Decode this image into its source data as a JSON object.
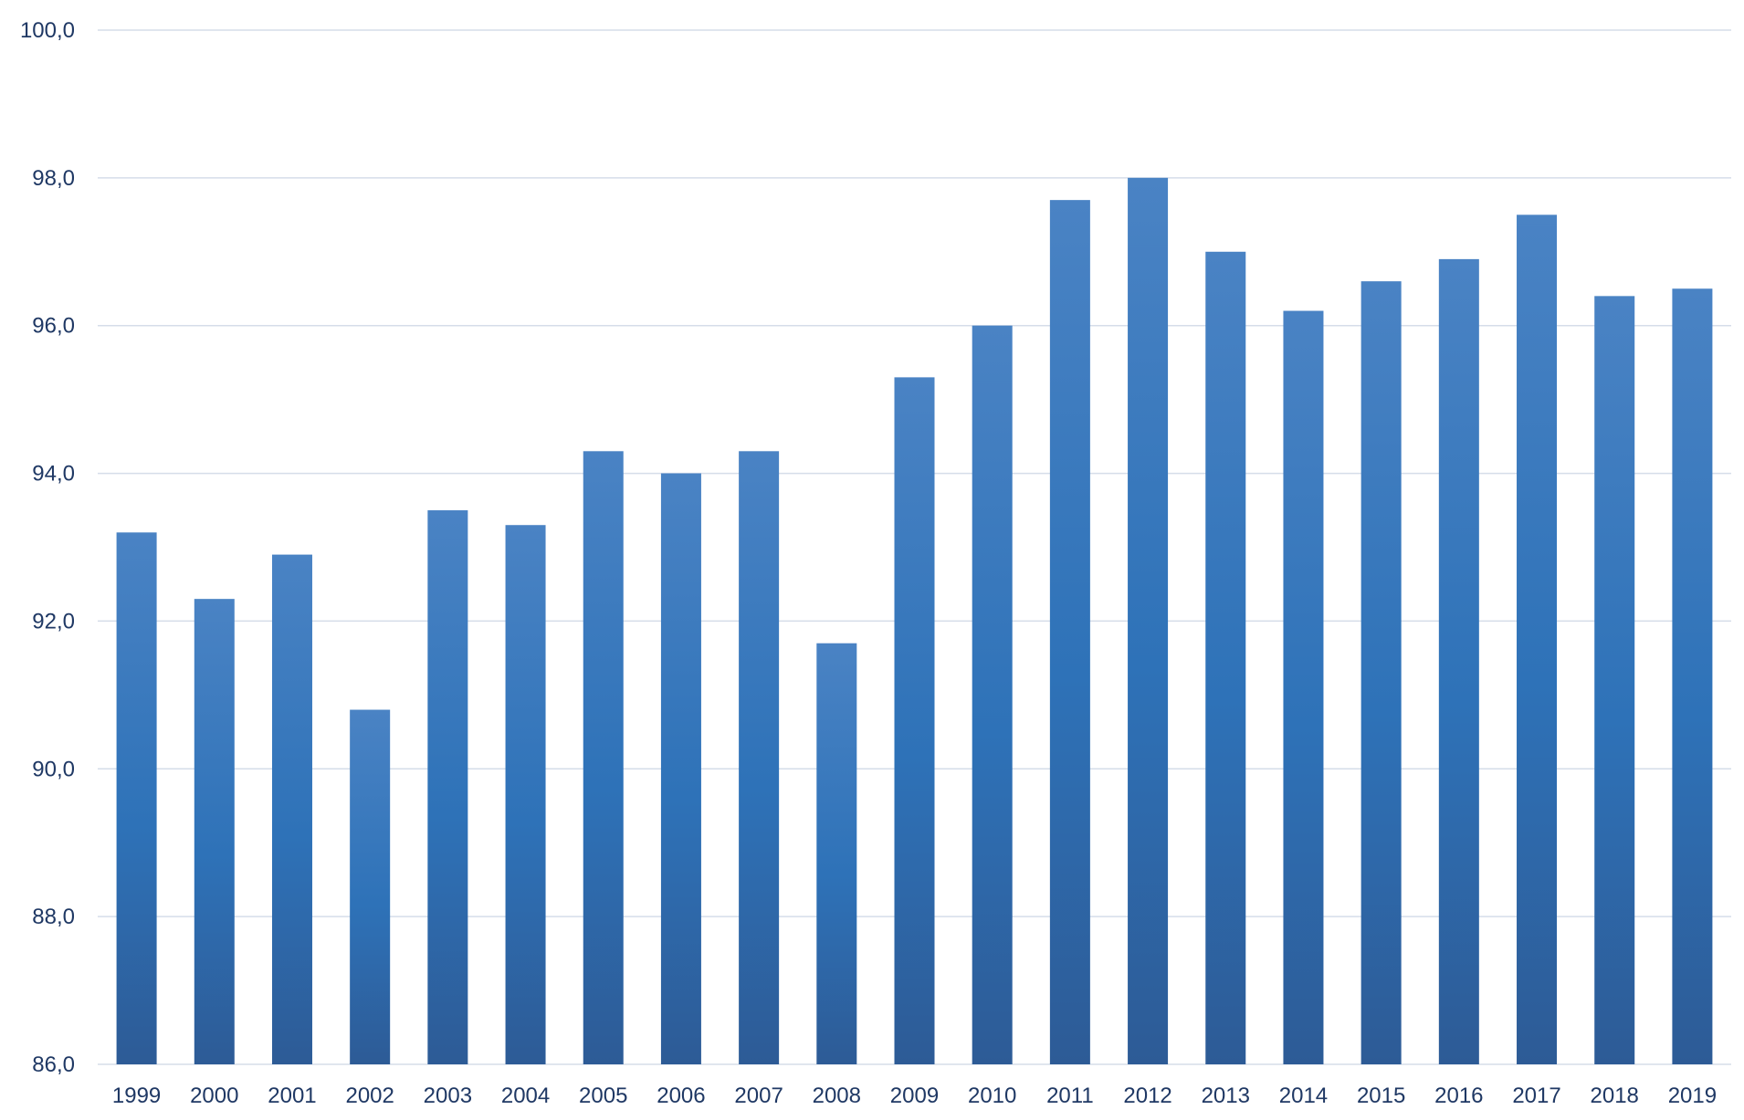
{
  "chart_data": {
    "type": "bar",
    "categories": [
      "1999",
      "2000",
      "2001",
      "2002",
      "2003",
      "2004",
      "2005",
      "2006",
      "2007",
      "2008",
      "2009",
      "2010",
      "2011",
      "2012",
      "2013",
      "2014",
      "2015",
      "2016",
      "2017",
      "2018",
      "2019"
    ],
    "values": [
      93.2,
      92.3,
      92.9,
      90.8,
      93.5,
      93.3,
      94.3,
      94.0,
      94.3,
      91.7,
      95.3,
      96.0,
      97.7,
      98.0,
      97.0,
      96.2,
      96.6,
      96.9,
      97.5,
      96.4,
      96.5
    ],
    "ylim": [
      86,
      100
    ],
    "yticks": [
      86,
      88,
      90,
      92,
      94,
      96,
      98,
      100
    ],
    "ytick_labels": [
      "86,0",
      "88,0",
      "90,0",
      "92,0",
      "94,0",
      "96,0",
      "98,0",
      "100,0"
    ],
    "title": "",
    "xlabel": "",
    "ylabel": "",
    "grid": true,
    "legend": "none",
    "colors": {
      "bar_top": "#4a83c4",
      "bar_mid": "#2e72b8",
      "bar_bottom": "#2d5b96",
      "grid": "#d5dde9",
      "text": "#1f3864"
    }
  }
}
